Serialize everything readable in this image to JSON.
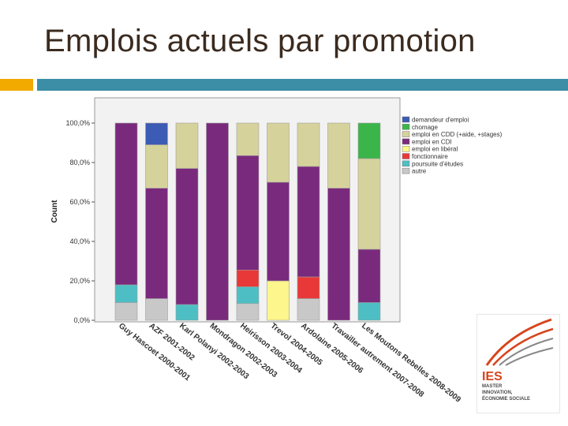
{
  "slide": {
    "title": "Emplois actuels par promotion"
  },
  "logo": {
    "ies": "IES",
    "line1": "MASTER",
    "line2": "INNOVATION,",
    "line3": "ÉCONOMIE SOCIALE"
  },
  "chart_data": {
    "type": "bar",
    "stacked": true,
    "ylabel": "Count",
    "ylim": [
      0,
      100
    ],
    "yticks": [
      "0,0%",
      "20,0%",
      "40,0%",
      "60,0%",
      "80,0%",
      "100,0%"
    ],
    "grid": false,
    "legend_position": "right",
    "categories": [
      "Guy Hascoet 2000-2001",
      "AZF 2001-2002",
      "Karl Polanyi 2002-2003",
      "Mondragon 2002-2003",
      "Heirisson 2003-2004",
      "Trevol 2004-2005",
      "Ardolaine 2005-2006",
      "Travailler autrement 2007-2008",
      "Les Moutons Rebelles 2008-2009"
    ],
    "series": [
      {
        "name": "autre",
        "color": "#c8c8c8",
        "values": [
          9,
          11,
          0,
          0,
          8.5,
          0,
          11,
          0,
          0
        ]
      },
      {
        "name": "poursuite d'études",
        "color": "#4dbfc4",
        "values": [
          9,
          0,
          8,
          0,
          8.5,
          0,
          0,
          0,
          9
        ]
      },
      {
        "name": "fonctionnaire",
        "color": "#e83838",
        "values": [
          0,
          0,
          0,
          0,
          8.5,
          0,
          11,
          0,
          0
        ]
      },
      {
        "name": "emploi en libéral",
        "color": "#fcf68c",
        "values": [
          0,
          0,
          0,
          0,
          0,
          20,
          0,
          0,
          0
        ]
      },
      {
        "name": "emploi en CDI",
        "color": "#7a2a7c",
        "values": [
          82,
          56,
          69,
          100,
          58,
          50,
          56,
          67,
          27
        ]
      },
      {
        "name": "emploi en CDD (+aide, +stages)",
        "color": "#d6d29c",
        "values": [
          0,
          22,
          23,
          0,
          16.5,
          30,
          22,
          33,
          46
        ]
      },
      {
        "name": "chomage",
        "color": "#3bb54a",
        "values": [
          0,
          0,
          0,
          0,
          0,
          0,
          0,
          0,
          18
        ]
      },
      {
        "name": "demandeur d'emploi",
        "color": "#3b5bb4",
        "values": [
          0,
          11,
          0,
          0,
          0,
          0,
          0,
          0,
          0
        ]
      }
    ],
    "legend_order": [
      "demandeur d'emploi",
      "chomage",
      "emploi en CDD (+aide, +stages)",
      "emploi en CDI",
      "emploi en libéral",
      "fonctionnaire",
      "poursuite d'études",
      "autre"
    ]
  }
}
